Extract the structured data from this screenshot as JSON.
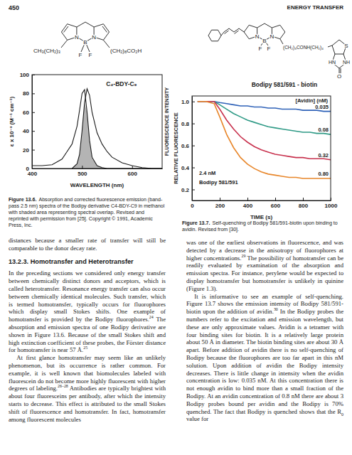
{
  "page": {
    "number": "450",
    "running_head": "ENERGY TRANSFER",
    "figure_13_6": {
      "structure": [
        "CH₃(CH₂)₃",
        "N",
        "B",
        "N",
        "F",
        "F",
        "(CH₂)₈CO₂H"
      ],
      "caption": {
        "label": "Figure 13.6.",
        "text": "Absorption and corrected fluorescence emission (band-pass 2.5 nm) spectra of the Bodipy derivative C4-BDY-C9 in methanol with shaded area representing spectral overlap. Revised and reprinted with permission from [25]. Copyright © 1991, Academic Press, Inc."
      }
    },
    "figure_13_7": {
      "structure": [
        "N",
        "B",
        "N",
        "F",
        "F",
        "(CH₂)₃CONH(CH₂)₄",
        "S",
        "HN",
        "NH",
        "O",
        "Bodipy 581/591 - biotin"
      ],
      "caption": {
        "label": "Figure 13.7.",
        "text": "Self-quenching of Bodipy 581/591-biotin upon binding to avidin. Revised from [30]."
      }
    },
    "left_column": [
      {
        "segments": [
          "distances because a smaller rate of transfer will still be comparable to the donor decay rate."
        ]
      },
      {
        "heading": "13.2.3. Homotransfer and Heterotransfer"
      },
      {
        "segments": [
          "In the preceding sections we considered only energy transfer between chemically distinct donors and acceptors, which is called heterotransfer. Resonance energy transfer can also occur between chemically identical molecules. Such transfer, which is termed homotransfer, typically occurs for fluorophores which display small Stokes shifts. One example of homotransfer is provided by the Bodipy fluorophores.",
          {
            "sup": "24"
          },
          " The absorption and emission spectra of one Bodipy derivative are shown in Figure 13.6. Because of the small Stokes shift and high extinction coefficient of these probes, the Förster distance for homotransfer is near 57 Å.",
          {
            "sup": "25"
          }
        ]
      },
      {
        "segments": [
          "At first glance homotransfer may seem like an unlikely phenomenon, but its occurrence is rather common. For example, it is well known that biomolecules labeled with fluorescein do not become more highly fluorescent with higher degrees of labeling.",
          {
            "sup": "26–28"
          },
          " Antibodies are typically brightest with about four fluoresceins per antibody, after which the intensity starts to decrease. This effect is attributed to the small Stokes shift of fluorescence and homotransfer. In fact, homotransfer among fluorescent molecules"
        ]
      }
    ],
    "right_column": [
      {
        "segments": [
          "was one of the earliest observations in fluorescence, and was detected by a decrease in the anisotropy of fluorophores at higher concentrations.",
          {
            "sup": "29"
          },
          " The possibility of homotransfer can be readily evaluated by examination of the absorption and emission spectra. For instance, perylene would be expected to display homotransfer but homotransfer is unlikely in quinine (Figure 1.3)."
        ]
      },
      {
        "segments": [
          "It is informative to see an example of self-quenching. Figure 13.7 shows the emission intensity of Bodipy 581/591-biotin upon the addition of avidin.",
          {
            "sup": "30"
          },
          " In the Bodipy probes the numbers refer to the excitation and emission wavelength, but these are only approximate values. Avidin is a tetramer with four binding sites for biotin. It is a relatively large protein about 50 Å in diameter. The biotin binding sites are about 30 Å apart. Before addition of avidin there is no self-quenching of Bodipy because the fluorophores are too far apart in this nM solution. Upon addition of avidin the Bodipy intensity decreases. There is little change in intensity when the avidin concentration is low: 0.035 nM. At this concentration there is not enough avidin to bind more than a small fraction of the Bodipy. At an avidin concentration of 0.8 nM there are about 3 Bodipy probes bound per avidin and the Bodipy is 70% quenched. The fact that Bodipy is quenched shows that the R",
          {
            "sub": "0"
          },
          " value for"
        ]
      }
    ]
  },
  "chart_data": [
    {
      "type": "line",
      "x": [
        400,
        420,
        440,
        460,
        470,
        480,
        490,
        495,
        500,
        505,
        510,
        515,
        520,
        530,
        540,
        550,
        560,
        580,
        600,
        620,
        640,
        660
      ],
      "series": [
        {
          "type": "line",
          "color": "#1a1a1a",
          "values": [
            3,
            3,
            4,
            10,
            18,
            26,
            45,
            62,
            80,
            84,
            60,
            30,
            12,
            3,
            1,
            0,
            0,
            0,
            0,
            0,
            0,
            0
          ]
        },
        {
          "type": "line",
          "color": "#1a1a1a",
          "values": [
            null,
            null,
            null,
            null,
            null,
            0,
            5,
            15,
            40,
            70,
            85,
            78,
            60,
            38,
            26,
            18,
            12,
            6,
            3,
            1,
            0,
            0
          ]
        },
        {
          "type": "area",
          "color": "#b4b4b4",
          "values": [
            null,
            null,
            null,
            null,
            null,
            0,
            5,
            15,
            40,
            70,
            60,
            30,
            12,
            3,
            1,
            0,
            null,
            null,
            null,
            null,
            null,
            null
          ]
        }
      ],
      "x_label": "WAVELENGTH (nm)",
      "y_label": "ε x 10⁻³ (M⁻¹ cm⁻¹)",
      "y2_label": "FLUORESCENCE INTENSITY",
      "xlim": [
        400,
        660
      ],
      "xticks": [
        400,
        500,
        600
      ],
      "ylim": [
        0,
        100
      ],
      "yticks": [
        0,
        20,
        40,
        60,
        80,
        100
      ],
      "annotations": [
        "C₄-BDY-C₉"
      ]
    },
    {
      "type": "line",
      "x": [
        40,
        100,
        160,
        200,
        250,
        300,
        350,
        400,
        450,
        500,
        550,
        600,
        650,
        700,
        750,
        800,
        850,
        900,
        950,
        1000
      ],
      "series": [
        {
          "name": "0.035",
          "color": "#2f62b8",
          "values": [
            1.0,
            1.0,
            1.0,
            0.99,
            0.98,
            0.97,
            0.96,
            0.96,
            0.95,
            0.95,
            0.94,
            0.94,
            0.93,
            0.93,
            0.93,
            0.92,
            0.92,
            0.92,
            0.91,
            0.91
          ]
        },
        {
          "name": "0.08",
          "color": "#2f9a86",
          "values": [
            1.0,
            1.0,
            1.0,
            0.97,
            0.93,
            0.89,
            0.86,
            0.83,
            0.81,
            0.79,
            0.77,
            0.76,
            0.75,
            0.74,
            0.73,
            0.72,
            0.72,
            0.71,
            0.71,
            0.7
          ]
        },
        {
          "name": "0.32",
          "color": "#c8324e",
          "values": [
            1.0,
            1.0,
            1.0,
            0.93,
            0.83,
            0.75,
            0.68,
            0.63,
            0.59,
            0.56,
            0.54,
            0.52,
            0.51,
            0.5,
            0.49,
            0.49,
            0.48,
            0.48,
            0.48,
            0.47
          ]
        },
        {
          "name": "0.80",
          "color": "#e8862a",
          "values": [
            1.0,
            1.0,
            0.98,
            0.86,
            0.7,
            0.58,
            0.49,
            0.43,
            0.39,
            0.36,
            0.34,
            0.33,
            0.32,
            0.31,
            0.31,
            0.3,
            0.3,
            0.3,
            0.3,
            0.3
          ]
        }
      ],
      "x_label": "TIME (s)",
      "y_label": "RELATIVE FLUORESCENCE",
      "xlim": [
        0,
        1000
      ],
      "xticks": [
        0,
        200,
        400,
        600,
        800,
        1000
      ],
      "ylim": [
        0.1,
        1.05
      ],
      "yticks": [
        0.2,
        0.4,
        0.6,
        0.8,
        {
          "value": 1,
          "label": "1.0"
        }
      ],
      "annotations": [
        "[Avidin] (nM)",
        "2.4 nM",
        "Bodipy 581/591"
      ]
    }
  ]
}
